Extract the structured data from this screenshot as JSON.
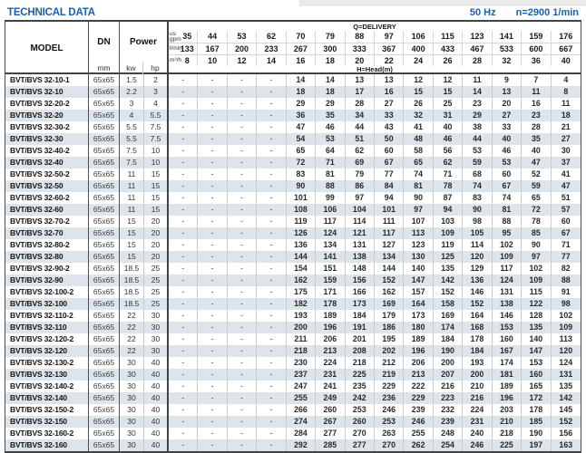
{
  "page": {
    "title": "TECHNICAL DATA",
    "frequency": "50 Hz",
    "speed": "n=2900 1/min"
  },
  "colors": {
    "accent": "#1c5fa8",
    "stripe": "#dde4ea"
  },
  "table": {
    "model_header": "MODEL",
    "dn_header": "DN",
    "dn_unit": "mm",
    "power_header": "Power",
    "power_unit_kw": "kw",
    "power_unit_hp": "hp",
    "delivery_header": "Q=DELIVERY",
    "head_header": "H=Head(m)",
    "unit_rows": [
      {
        "label_lines": [
          "us",
          "gpm"
        ],
        "values": [
          "35",
          "44",
          "53",
          "62",
          "70",
          "79",
          "88",
          "97",
          "106",
          "115",
          "123",
          "141",
          "159",
          "176"
        ]
      },
      {
        "label_lines": [
          "l/min"
        ],
        "values": [
          "133",
          "167",
          "200",
          "233",
          "267",
          "300",
          "333",
          "367",
          "400",
          "433",
          "467",
          "533",
          "600",
          "667"
        ]
      },
      {
        "label_lines": [
          "m³/h"
        ],
        "values": [
          "8",
          "10",
          "12",
          "14",
          "16",
          "18",
          "20",
          "22",
          "24",
          "26",
          "28",
          "32",
          "36",
          "40"
        ]
      }
    ],
    "rows": [
      {
        "model": "BVT/BVS 32-10-1",
        "dn": "65x65",
        "kw": "1.5",
        "hp": "2",
        "head": [
          "-",
          "-",
          "-",
          "-",
          "14",
          "14",
          "13",
          "13",
          "12",
          "12",
          "11",
          "9",
          "7",
          "4"
        ]
      },
      {
        "model": "BVT/BVS 32-10",
        "dn": "65x65",
        "kw": "2.2",
        "hp": "3",
        "head": [
          "-",
          "-",
          "-",
          "-",
          "18",
          "18",
          "17",
          "16",
          "15",
          "15",
          "14",
          "13",
          "11",
          "8"
        ]
      },
      {
        "model": "BVT/BVS 32-20-2",
        "dn": "65x65",
        "kw": "3",
        "hp": "4",
        "head": [
          "-",
          "-",
          "-",
          "-",
          "29",
          "29",
          "28",
          "27",
          "26",
          "25",
          "23",
          "20",
          "16",
          "11"
        ]
      },
      {
        "model": "BVT/BVS 32-20",
        "dn": "65x65",
        "kw": "4",
        "hp": "5.5",
        "head": [
          "-",
          "-",
          "-",
          "-",
          "36",
          "35",
          "34",
          "33",
          "32",
          "31",
          "29",
          "27",
          "23",
          "18"
        ]
      },
      {
        "model": "BVT/BVS 32-30-2",
        "dn": "65x65",
        "kw": "5.5",
        "hp": "7.5",
        "head": [
          "-",
          "-",
          "-",
          "-",
          "47",
          "46",
          "44",
          "43",
          "41",
          "40",
          "38",
          "33",
          "28",
          "21"
        ]
      },
      {
        "model": "BVT/BVS 32-30",
        "dn": "65x65",
        "kw": "5.5",
        "hp": "7.5",
        "head": [
          "-",
          "-",
          "-",
          "-",
          "54",
          "53",
          "51",
          "50",
          "48",
          "46",
          "44",
          "40",
          "35",
          "27"
        ]
      },
      {
        "model": "BVT/BVS 32-40-2",
        "dn": "65x65",
        "kw": "7.5",
        "hp": "10",
        "head": [
          "-",
          "-",
          "-",
          "-",
          "65",
          "64",
          "62",
          "60",
          "58",
          "56",
          "53",
          "46",
          "40",
          "30"
        ]
      },
      {
        "model": "BVT/BVS 32-40",
        "dn": "65x65",
        "kw": "7.5",
        "hp": "10",
        "head": [
          "-",
          "-",
          "-",
          "-",
          "72",
          "71",
          "69",
          "67",
          "65",
          "62",
          "59",
          "53",
          "47",
          "37"
        ]
      },
      {
        "model": "BVT/BVS 32-50-2",
        "dn": "65x65",
        "kw": "11",
        "hp": "15",
        "head": [
          "-",
          "-",
          "-",
          "-",
          "83",
          "81",
          "79",
          "77",
          "74",
          "71",
          "68",
          "60",
          "52",
          "41"
        ]
      },
      {
        "model": "BVT/BVS 32-50",
        "dn": "65x65",
        "kw": "11",
        "hp": "15",
        "head": [
          "-",
          "-",
          "-",
          "-",
          "90",
          "88",
          "86",
          "84",
          "81",
          "78",
          "74",
          "67",
          "59",
          "47"
        ]
      },
      {
        "model": "BVT/BVS 32-60-2",
        "dn": "65x65",
        "kw": "11",
        "hp": "15",
        "head": [
          "-",
          "-",
          "-",
          "-",
          "101",
          "99",
          "97",
          "94",
          "90",
          "87",
          "83",
          "74",
          "65",
          "51"
        ]
      },
      {
        "model": "BVT/BVS 32-60",
        "dn": "65x65",
        "kw": "11",
        "hp": "15",
        "head": [
          "-",
          "-",
          "-",
          "-",
          "108",
          "106",
          "104",
          "101",
          "97",
          "94",
          "90",
          "81",
          "72",
          "57"
        ]
      },
      {
        "model": "BVT/BVS 32-70-2",
        "dn": "65x65",
        "kw": "15",
        "hp": "20",
        "head": [
          "-",
          "-",
          "-",
          "-",
          "119",
          "117",
          "114",
          "111",
          "107",
          "103",
          "98",
          "88",
          "78",
          "60"
        ]
      },
      {
        "model": "BVT/BVS 32-70",
        "dn": "65x65",
        "kw": "15",
        "hp": "20",
        "head": [
          "-",
          "-",
          "-",
          "-",
          "126",
          "124",
          "121",
          "117",
          "113",
          "109",
          "105",
          "95",
          "85",
          "67"
        ]
      },
      {
        "model": "BVT/BVS 32-80-2",
        "dn": "65x65",
        "kw": "15",
        "hp": "20",
        "head": [
          "-",
          "-",
          "-",
          "-",
          "136",
          "134",
          "131",
          "127",
          "123",
          "119",
          "114",
          "102",
          "90",
          "71"
        ]
      },
      {
        "model": "BVT/BVS 32-80",
        "dn": "65x65",
        "kw": "15",
        "hp": "20",
        "head": [
          "-",
          "-",
          "-",
          "-",
          "144",
          "141",
          "138",
          "134",
          "130",
          "125",
          "120",
          "109",
          "97",
          "77"
        ]
      },
      {
        "model": "BVT/BVS 32-90-2",
        "dn": "65x65",
        "kw": "18.5",
        "hp": "25",
        "head": [
          "-",
          "-",
          "-",
          "-",
          "154",
          "151",
          "148",
          "144",
          "140",
          "135",
          "129",
          "117",
          "102",
          "82"
        ]
      },
      {
        "model": "BVT/BVS 32-90",
        "dn": "65x65",
        "kw": "18.5",
        "hp": "25",
        "head": [
          "-",
          "-",
          "-",
          "-",
          "162",
          "159",
          "156",
          "152",
          "147",
          "142",
          "136",
          "124",
          "109",
          "88"
        ]
      },
      {
        "model": "BVT/BVS 32-100-2",
        "dn": "65x65",
        "kw": "18.5",
        "hp": "25",
        "head": [
          "-",
          "-",
          "-",
          "-",
          "175",
          "171",
          "166",
          "162",
          "157",
          "152",
          "146",
          "131",
          "115",
          "91"
        ]
      },
      {
        "model": "BVT/BVS 32-100",
        "dn": "65x65",
        "kw": "18.5",
        "hp": "25",
        "head": [
          "-",
          "-",
          "-",
          "-",
          "182",
          "178",
          "173",
          "169",
          "164",
          "158",
          "152",
          "138",
          "122",
          "98"
        ]
      },
      {
        "model": "BVT/BVS 32-110-2",
        "dn": "65x65",
        "kw": "22",
        "hp": "30",
        "head": [
          "-",
          "-",
          "-",
          "-",
          "193",
          "189",
          "184",
          "179",
          "173",
          "169",
          "164",
          "146",
          "128",
          "102"
        ]
      },
      {
        "model": "BVT/BVS 32-110",
        "dn": "65x65",
        "kw": "22",
        "hp": "30",
        "head": [
          "-",
          "-",
          "-",
          "-",
          "200",
          "196",
          "191",
          "186",
          "180",
          "174",
          "168",
          "153",
          "135",
          "109"
        ]
      },
      {
        "model": "BVT/BVS 32-120-2",
        "dn": "65x65",
        "kw": "22",
        "hp": "30",
        "head": [
          "-",
          "-",
          "-",
          "-",
          "211",
          "206",
          "201",
          "195",
          "189",
          "184",
          "178",
          "160",
          "140",
          "113"
        ]
      },
      {
        "model": "BVT/BVS 32-120",
        "dn": "65x65",
        "kw": "22",
        "hp": "30",
        "head": [
          "-",
          "-",
          "-",
          "-",
          "218",
          "213",
          "208",
          "202",
          "196",
          "190",
          "184",
          "167",
          "147",
          "120"
        ]
      },
      {
        "model": "BVT/BVS 32-130-2",
        "dn": "65x65",
        "kw": "30",
        "hp": "40",
        "head": [
          "-",
          "-",
          "-",
          "-",
          "230",
          "224",
          "218",
          "212",
          "206",
          "200",
          "193",
          "174",
          "153",
          "124"
        ]
      },
      {
        "model": "BVT/BVS 32-130",
        "dn": "65x65",
        "kw": "30",
        "hp": "40",
        "head": [
          "-",
          "-",
          "-",
          "-",
          "237",
          "231",
          "225",
          "219",
          "213",
          "207",
          "200",
          "181",
          "160",
          "131"
        ]
      },
      {
        "model": "BVT/BVS 32-140-2",
        "dn": "65x65",
        "kw": "30",
        "hp": "40",
        "head": [
          "-",
          "-",
          "-",
          "-",
          "247",
          "241",
          "235",
          "229",
          "222",
          "216",
          "210",
          "189",
          "165",
          "135"
        ]
      },
      {
        "model": "BVT/BVS 32-140",
        "dn": "65x65",
        "kw": "30",
        "hp": "40",
        "head": [
          "-",
          "-",
          "-",
          "-",
          "255",
          "249",
          "242",
          "236",
          "229",
          "223",
          "216",
          "196",
          "172",
          "142"
        ]
      },
      {
        "model": "BVT/BVS 32-150-2",
        "dn": "65x65",
        "kw": "30",
        "hp": "40",
        "head": [
          "-",
          "-",
          "-",
          "-",
          "266",
          "260",
          "253",
          "246",
          "239",
          "232",
          "224",
          "203",
          "178",
          "145"
        ]
      },
      {
        "model": "BVT/BVS 32-150",
        "dn": "65x65",
        "kw": "30",
        "hp": "40",
        "head": [
          "-",
          "-",
          "-",
          "-",
          "274",
          "267",
          "260",
          "253",
          "246",
          "239",
          "231",
          "210",
          "185",
          "152"
        ]
      },
      {
        "model": "BVT/BVS 32-160-2",
        "dn": "65x65",
        "kw": "30",
        "hp": "40",
        "head": [
          "-",
          "-",
          "-",
          "-",
          "284",
          "277",
          "270",
          "263",
          "255",
          "248",
          "240",
          "218",
          "190",
          "156"
        ]
      },
      {
        "model": "BVT/BVS 32-160",
        "dn": "65x65",
        "kw": "30",
        "hp": "40",
        "head": [
          "-",
          "-",
          "-",
          "-",
          "292",
          "285",
          "277",
          "270",
          "262",
          "254",
          "246",
          "225",
          "197",
          "163"
        ]
      }
    ]
  }
}
